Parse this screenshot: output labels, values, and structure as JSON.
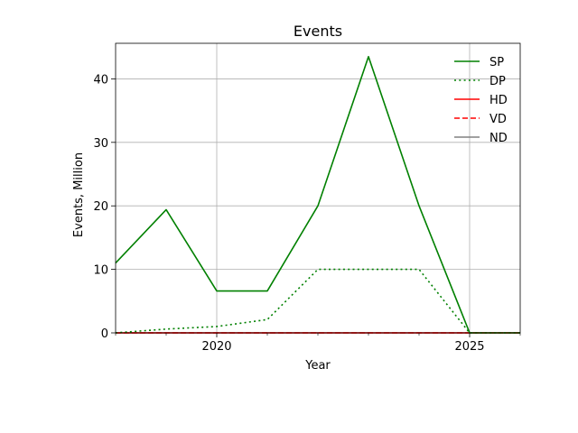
{
  "chart_data": {
    "type": "line",
    "title": "Events",
    "xlabel": "Year",
    "ylabel": "Events, Million",
    "xlim": [
      2018,
      2026
    ],
    "ylim": [
      0,
      45.6
    ],
    "x_ticks": [
      2020,
      2025
    ],
    "x_tick_labels": [
      "2020",
      "2025"
    ],
    "y_ticks": [
      0,
      10,
      20,
      30,
      40
    ],
    "y_tick_labels": [
      "0",
      "10",
      "20",
      "30",
      "40"
    ],
    "grid": true,
    "legend_position": "top-right",
    "x": [
      2018,
      2019,
      2020,
      2021,
      2022,
      2023,
      2024,
      2025,
      2026
    ],
    "series": [
      {
        "name": "SP",
        "color": "#008000",
        "style": "solid",
        "values": [
          11.0,
          19.4,
          6.6,
          6.6,
          20.0,
          43.5,
          20.0,
          0.0,
          0.0
        ]
      },
      {
        "name": "DP",
        "color": "#008000",
        "style": "dotted",
        "values": [
          0.0,
          0.6,
          1.0,
          2.1,
          10.0,
          10.0,
          10.0,
          0.0,
          0.0
        ]
      },
      {
        "name": "HD",
        "color": "#ff0000",
        "style": "solid",
        "values": [
          0,
          0,
          0,
          0,
          0,
          0,
          0,
          0,
          0
        ]
      },
      {
        "name": "VD",
        "color": "#ff0000",
        "style": "dashed",
        "values": [
          0,
          0,
          0,
          0,
          0,
          0,
          0,
          0,
          0
        ]
      },
      {
        "name": "ND",
        "color": "#808080",
        "style": "solid",
        "values": [
          0,
          0,
          0,
          0,
          0,
          0,
          0,
          0,
          0
        ]
      }
    ]
  }
}
